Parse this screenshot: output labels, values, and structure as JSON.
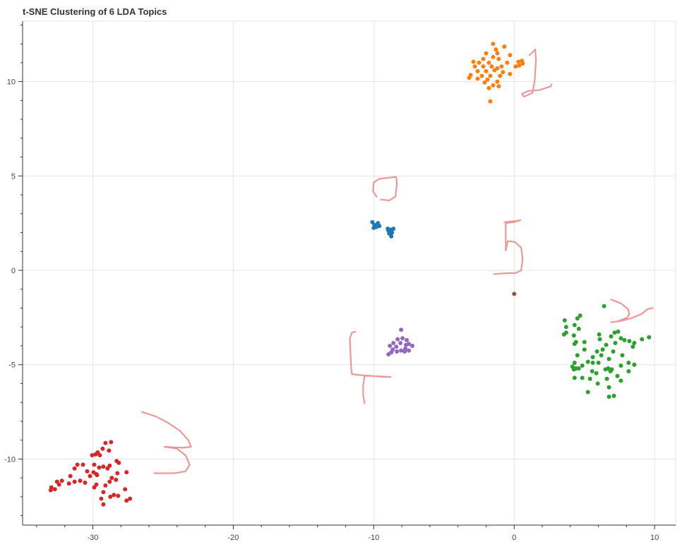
{
  "chart_data": {
    "type": "scatter",
    "title": "t-SNE Clustering of 6 LDA Topics",
    "xlabel": "",
    "ylabel": "",
    "xlim": [
      -35,
      11.5
    ],
    "ylim": [
      -13.5,
      13.2
    ],
    "x_ticks": [
      -30,
      -20,
      -10,
      0,
      10
    ],
    "y_ticks": [
      -10,
      -5,
      0,
      5,
      10
    ],
    "grid": true,
    "legend": "none",
    "series": [
      {
        "color": "#1f77b4",
        "points": [
          [
            -10.1,
            2.55
          ],
          [
            -9.95,
            2.4
          ],
          [
            -9.8,
            2.3
          ],
          [
            -9.7,
            2.5
          ],
          [
            -9.6,
            2.35
          ],
          [
            -9.0,
            2.2
          ],
          [
            -8.95,
            2.1
          ],
          [
            -8.8,
            2.15
          ],
          [
            -8.7,
            2.0
          ],
          [
            -8.9,
            1.95
          ],
          [
            -8.6,
            2.2
          ],
          [
            -8.75,
            1.8
          ],
          [
            -10.0,
            2.25
          ]
        ]
      },
      {
        "color": "#ff7f0e",
        "points": [
          [
            -1.5,
            12.0
          ],
          [
            -0.7,
            11.85
          ],
          [
            -1.3,
            11.7
          ],
          [
            -2.0,
            11.5
          ],
          [
            -1.2,
            11.5
          ],
          [
            -0.3,
            11.4
          ],
          [
            -1.5,
            11.3
          ],
          [
            -2.2,
            11.2
          ],
          [
            -1.1,
            11.2
          ],
          [
            -2.9,
            11.05
          ],
          [
            -2.5,
            11.0
          ],
          [
            -1.8,
            11.0
          ],
          [
            -0.5,
            11.0
          ],
          [
            0.3,
            11.05
          ],
          [
            0.55,
            11.1
          ],
          [
            0.6,
            10.95
          ],
          [
            0.35,
            10.85
          ],
          [
            -2.8,
            10.8
          ],
          [
            -2.2,
            10.8
          ],
          [
            -1.6,
            10.8
          ],
          [
            -0.9,
            10.8
          ],
          [
            0.1,
            10.8
          ],
          [
            -1.2,
            10.7
          ],
          [
            -2.6,
            10.55
          ],
          [
            -2.0,
            10.55
          ],
          [
            -1.4,
            10.6
          ],
          [
            -0.8,
            10.5
          ],
          [
            -0.3,
            10.4
          ],
          [
            -3.1,
            10.35
          ],
          [
            -2.3,
            10.3
          ],
          [
            -1.7,
            10.3
          ],
          [
            -1.0,
            10.3
          ],
          [
            -3.2,
            10.2
          ],
          [
            -2.6,
            10.15
          ],
          [
            -1.9,
            10.1
          ],
          [
            -1.2,
            10.0
          ],
          [
            -2.1,
            9.95
          ],
          [
            -1.5,
            9.8
          ],
          [
            -1.1,
            9.75
          ],
          [
            -1.8,
            9.65
          ],
          [
            -1.7,
            8.95
          ]
        ]
      },
      {
        "color": "#2ca02c",
        "points": [
          [
            6.4,
            -1.9
          ],
          [
            4.7,
            -2.4
          ],
          [
            4.5,
            -2.55
          ],
          [
            3.6,
            -2.65
          ],
          [
            4.3,
            -2.9
          ],
          [
            3.7,
            -3.0
          ],
          [
            4.6,
            -3.1
          ],
          [
            7.4,
            -3.25
          ],
          [
            7.15,
            -3.3
          ],
          [
            3.7,
            -3.3
          ],
          [
            6.05,
            -3.4
          ],
          [
            3.55,
            -3.4
          ],
          [
            4.25,
            -3.45
          ],
          [
            6.9,
            -3.5
          ],
          [
            9.6,
            -3.55
          ],
          [
            7.6,
            -3.6
          ],
          [
            6.1,
            -3.65
          ],
          [
            9.1,
            -3.65
          ],
          [
            7.85,
            -3.7
          ],
          [
            4.4,
            -3.8
          ],
          [
            8.2,
            -3.75
          ],
          [
            5.0,
            -3.8
          ],
          [
            7.2,
            -3.85
          ],
          [
            4.3,
            -3.9
          ],
          [
            8.55,
            -3.85
          ],
          [
            6.55,
            -3.95
          ],
          [
            8.45,
            -4.05
          ],
          [
            6.3,
            -4.2
          ],
          [
            5.0,
            -4.2
          ],
          [
            5.9,
            -4.3
          ],
          [
            7.05,
            -4.3
          ],
          [
            4.5,
            -4.5
          ],
          [
            6.2,
            -4.5
          ],
          [
            5.6,
            -4.6
          ],
          [
            7.7,
            -4.5
          ],
          [
            6.75,
            -4.7
          ],
          [
            5.25,
            -4.85
          ],
          [
            5.6,
            -4.9
          ],
          [
            6.0,
            -4.9
          ],
          [
            8.15,
            -4.9
          ],
          [
            4.3,
            -4.9
          ],
          [
            8.55,
            -5.0
          ],
          [
            4.15,
            -5.1
          ],
          [
            7.6,
            -5.05
          ],
          [
            4.4,
            -5.2
          ],
          [
            4.85,
            -5.05
          ],
          [
            4.6,
            -5.2
          ],
          [
            6.7,
            -5.2
          ],
          [
            4.25,
            -5.25
          ],
          [
            6.95,
            -5.25
          ],
          [
            6.5,
            -5.25
          ],
          [
            6.85,
            -5.35
          ],
          [
            5.55,
            -5.35
          ],
          [
            8.15,
            -5.35
          ],
          [
            5.85,
            -5.45
          ],
          [
            7.35,
            -5.6
          ],
          [
            4.85,
            -5.7
          ],
          [
            4.3,
            -5.7
          ],
          [
            5.4,
            -5.75
          ],
          [
            6.6,
            -5.75
          ],
          [
            7.6,
            -5.85
          ],
          [
            5.95,
            -6.0
          ],
          [
            6.75,
            -6.2
          ],
          [
            5.25,
            -6.45
          ],
          [
            6.75,
            -6.7
          ],
          [
            7.1,
            -6.65
          ]
        ]
      },
      {
        "color": "#d62728",
        "points": [
          [
            -29.1,
            -9.15
          ],
          [
            -28.7,
            -9.1
          ],
          [
            -29.3,
            -9.45
          ],
          [
            -28.85,
            -9.55
          ],
          [
            -29.65,
            -9.65
          ],
          [
            -29.8,
            -9.75
          ],
          [
            -30.05,
            -9.8
          ],
          [
            -29.5,
            -9.8
          ],
          [
            -28.3,
            -10.1
          ],
          [
            -28.15,
            -10.2
          ],
          [
            -31.1,
            -10.3
          ],
          [
            -29.9,
            -10.3
          ],
          [
            -30.7,
            -10.3
          ],
          [
            -29.25,
            -10.4
          ],
          [
            -28.8,
            -10.35
          ],
          [
            -29.55,
            -10.45
          ],
          [
            -31.3,
            -10.5
          ],
          [
            -28.95,
            -10.5
          ],
          [
            -29.95,
            -10.7
          ],
          [
            -30.4,
            -10.65
          ],
          [
            -29.75,
            -10.8
          ],
          [
            -27.6,
            -10.7
          ],
          [
            -28.25,
            -10.75
          ],
          [
            -29.7,
            -10.85
          ],
          [
            -31.6,
            -10.9
          ],
          [
            -30.2,
            -10.9
          ],
          [
            -28.65,
            -11.0
          ],
          [
            -28.8,
            -11.2
          ],
          [
            -28.35,
            -11.1
          ],
          [
            -30.9,
            -11.15
          ],
          [
            -31.3,
            -11.2
          ],
          [
            -32.2,
            -11.15
          ],
          [
            -32.55,
            -11.2
          ],
          [
            -29.75,
            -11.35
          ],
          [
            -29.1,
            -11.4
          ],
          [
            -29.9,
            -11.5
          ],
          [
            -31.7,
            -11.3
          ],
          [
            -30.55,
            -11.25
          ],
          [
            -32.4,
            -11.35
          ],
          [
            -32.95,
            -11.5
          ],
          [
            -32.7,
            -11.6
          ],
          [
            -33.0,
            -11.65
          ],
          [
            -29.25,
            -11.75
          ],
          [
            -27.7,
            -11.6
          ],
          [
            -28.5,
            -11.9
          ],
          [
            -28.2,
            -11.95
          ],
          [
            -28.75,
            -12.0
          ],
          [
            -29.4,
            -12.1
          ],
          [
            -27.35,
            -12.1
          ],
          [
            -27.6,
            -12.2
          ],
          [
            -29.25,
            -12.4
          ]
        ]
      },
      {
        "color": "#9467bd",
        "points": [
          [
            -8.05,
            -3.15
          ],
          [
            -7.95,
            -3.6
          ],
          [
            -8.3,
            -3.65
          ],
          [
            -7.65,
            -3.7
          ],
          [
            -8.6,
            -3.85
          ],
          [
            -8.1,
            -3.85
          ],
          [
            -7.5,
            -3.9
          ],
          [
            -7.7,
            -3.95
          ],
          [
            -8.85,
            -4.0
          ],
          [
            -7.25,
            -4.0
          ],
          [
            -8.4,
            -4.05
          ],
          [
            -7.75,
            -4.15
          ],
          [
            -8.65,
            -4.2
          ],
          [
            -7.5,
            -4.25
          ],
          [
            -8.05,
            -4.25
          ],
          [
            -8.35,
            -4.3
          ],
          [
            -7.8,
            -4.3
          ],
          [
            -8.75,
            -4.35
          ],
          [
            -8.95,
            -4.45
          ]
        ]
      },
      {
        "color": "#8c564b",
        "points": [
          [
            0.0,
            -1.25
          ]
        ]
      }
    ],
    "annotations": [
      {
        "text": "0",
        "color": "#e8868a",
        "stroke": [
          [
            -9.8,
            3.9
          ],
          [
            -10.05,
            4.2
          ],
          [
            -10.0,
            4.65
          ],
          [
            -9.6,
            4.85
          ],
          [
            -9.0,
            4.9
          ],
          [
            -8.4,
            4.95
          ],
          [
            -8.35,
            4.6
          ],
          [
            -8.45,
            3.9
          ],
          [
            -8.9,
            3.7
          ],
          [
            -9.5,
            3.75
          ]
        ]
      },
      {
        "text": "1",
        "color": "#e8868a",
        "stroke": [
          [
            1.1,
            11.4
          ],
          [
            1.5,
            11.7
          ],
          [
            1.55,
            11.1
          ],
          [
            1.45,
            10.0
          ],
          [
            1.3,
            9.4
          ],
          [
            0.7,
            9.2
          ],
          [
            0.55,
            9.35
          ],
          [
            1.0,
            9.5
          ],
          [
            1.8,
            9.55
          ],
          [
            2.6,
            9.75
          ],
          [
            2.65,
            9.85
          ]
        ]
      },
      {
        "text": "2",
        "color": "#e8868a",
        "stroke": [
          [
            6.9,
            -1.55
          ],
          [
            7.6,
            -1.75
          ],
          [
            8.1,
            -2.05
          ],
          [
            8.2,
            -2.3
          ],
          [
            8.05,
            -2.5
          ],
          [
            7.4,
            -2.7
          ],
          [
            6.9,
            -2.75
          ],
          [
            7.5,
            -2.7
          ],
          [
            8.3,
            -2.55
          ],
          [
            9.1,
            -2.3
          ],
          [
            9.5,
            -2.05
          ],
          [
            9.85,
            -2.0
          ]
        ]
      },
      {
        "text": "3",
        "color": "#e8868a",
        "stroke": [
          [
            -26.5,
            -7.5
          ],
          [
            -25.5,
            -7.75
          ],
          [
            -24.7,
            -8.05
          ],
          [
            -23.8,
            -8.5
          ],
          [
            -23.2,
            -9.0
          ],
          [
            -23.0,
            -9.35
          ],
          [
            -23.6,
            -9.4
          ],
          [
            -24.9,
            -9.35
          ],
          [
            -24.0,
            -9.45
          ],
          [
            -23.4,
            -9.8
          ],
          [
            -23.1,
            -10.3
          ],
          [
            -23.4,
            -10.65
          ],
          [
            -24.2,
            -10.75
          ],
          [
            -25.2,
            -10.75
          ],
          [
            -25.6,
            -10.75
          ]
        ]
      },
      {
        "text": "4",
        "color": "#e8868a",
        "stroke": [
          [
            -11.3,
            -3.25
          ],
          [
            -11.55,
            -3.3
          ],
          [
            -11.7,
            -3.6
          ],
          [
            -11.65,
            -4.5
          ],
          [
            -11.6,
            -5.25
          ],
          [
            -11.55,
            -5.5
          ],
          [
            -11.0,
            -5.55
          ],
          [
            -10.1,
            -5.6
          ],
          [
            -9.2,
            -5.65
          ],
          [
            -8.8,
            -5.65
          ],
          [
            -10.1,
            -5.6
          ],
          [
            -10.65,
            -5.6
          ],
          [
            -10.75,
            -6.1
          ],
          [
            -10.75,
            -6.6
          ],
          [
            -10.65,
            -7.05
          ]
        ]
      },
      {
        "text": "5",
        "color": "#e8868a",
        "stroke": [
          [
            -0.7,
            2.55
          ],
          [
            -0.05,
            2.6
          ],
          [
            0.45,
            2.65
          ],
          [
            -0.05,
            2.55
          ],
          [
            -0.6,
            2.5
          ],
          [
            -0.6,
            2.05
          ],
          [
            -0.6,
            1.5
          ],
          [
            -0.6,
            1.05
          ],
          [
            -0.45,
            1.55
          ],
          [
            0.05,
            1.5
          ],
          [
            0.5,
            1.2
          ],
          [
            0.6,
            0.6
          ],
          [
            0.5,
            0.0
          ],
          [
            0.1,
            -0.15
          ],
          [
            -0.5,
            -0.15
          ],
          [
            -1.45,
            -0.2
          ]
        ]
      }
    ]
  }
}
